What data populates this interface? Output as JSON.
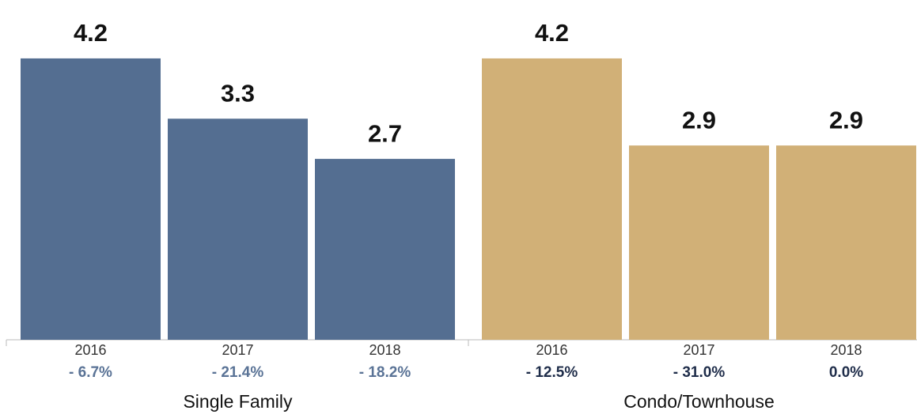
{
  "chart_data": {
    "type": "bar",
    "ylim": [
      0,
      4.6
    ],
    "groups": [
      {
        "name": "Single Family",
        "color": "#546e91",
        "change_color": "#5a7396",
        "categories": [
          "2016",
          "2017",
          "2018"
        ],
        "values": [
          4.2,
          3.3,
          2.7
        ],
        "change_labels": [
          "- 6.7%",
          "- 21.4%",
          "- 18.2%"
        ]
      },
      {
        "name": "Condo/Townhouse",
        "color": "#d1b077",
        "change_color": "#1f2d4a",
        "categories": [
          "2016",
          "2017",
          "2018"
        ],
        "values": [
          4.2,
          2.9,
          2.9
        ],
        "change_labels": [
          "- 12.5%",
          "- 31.0%",
          "0.0%"
        ]
      }
    ]
  }
}
